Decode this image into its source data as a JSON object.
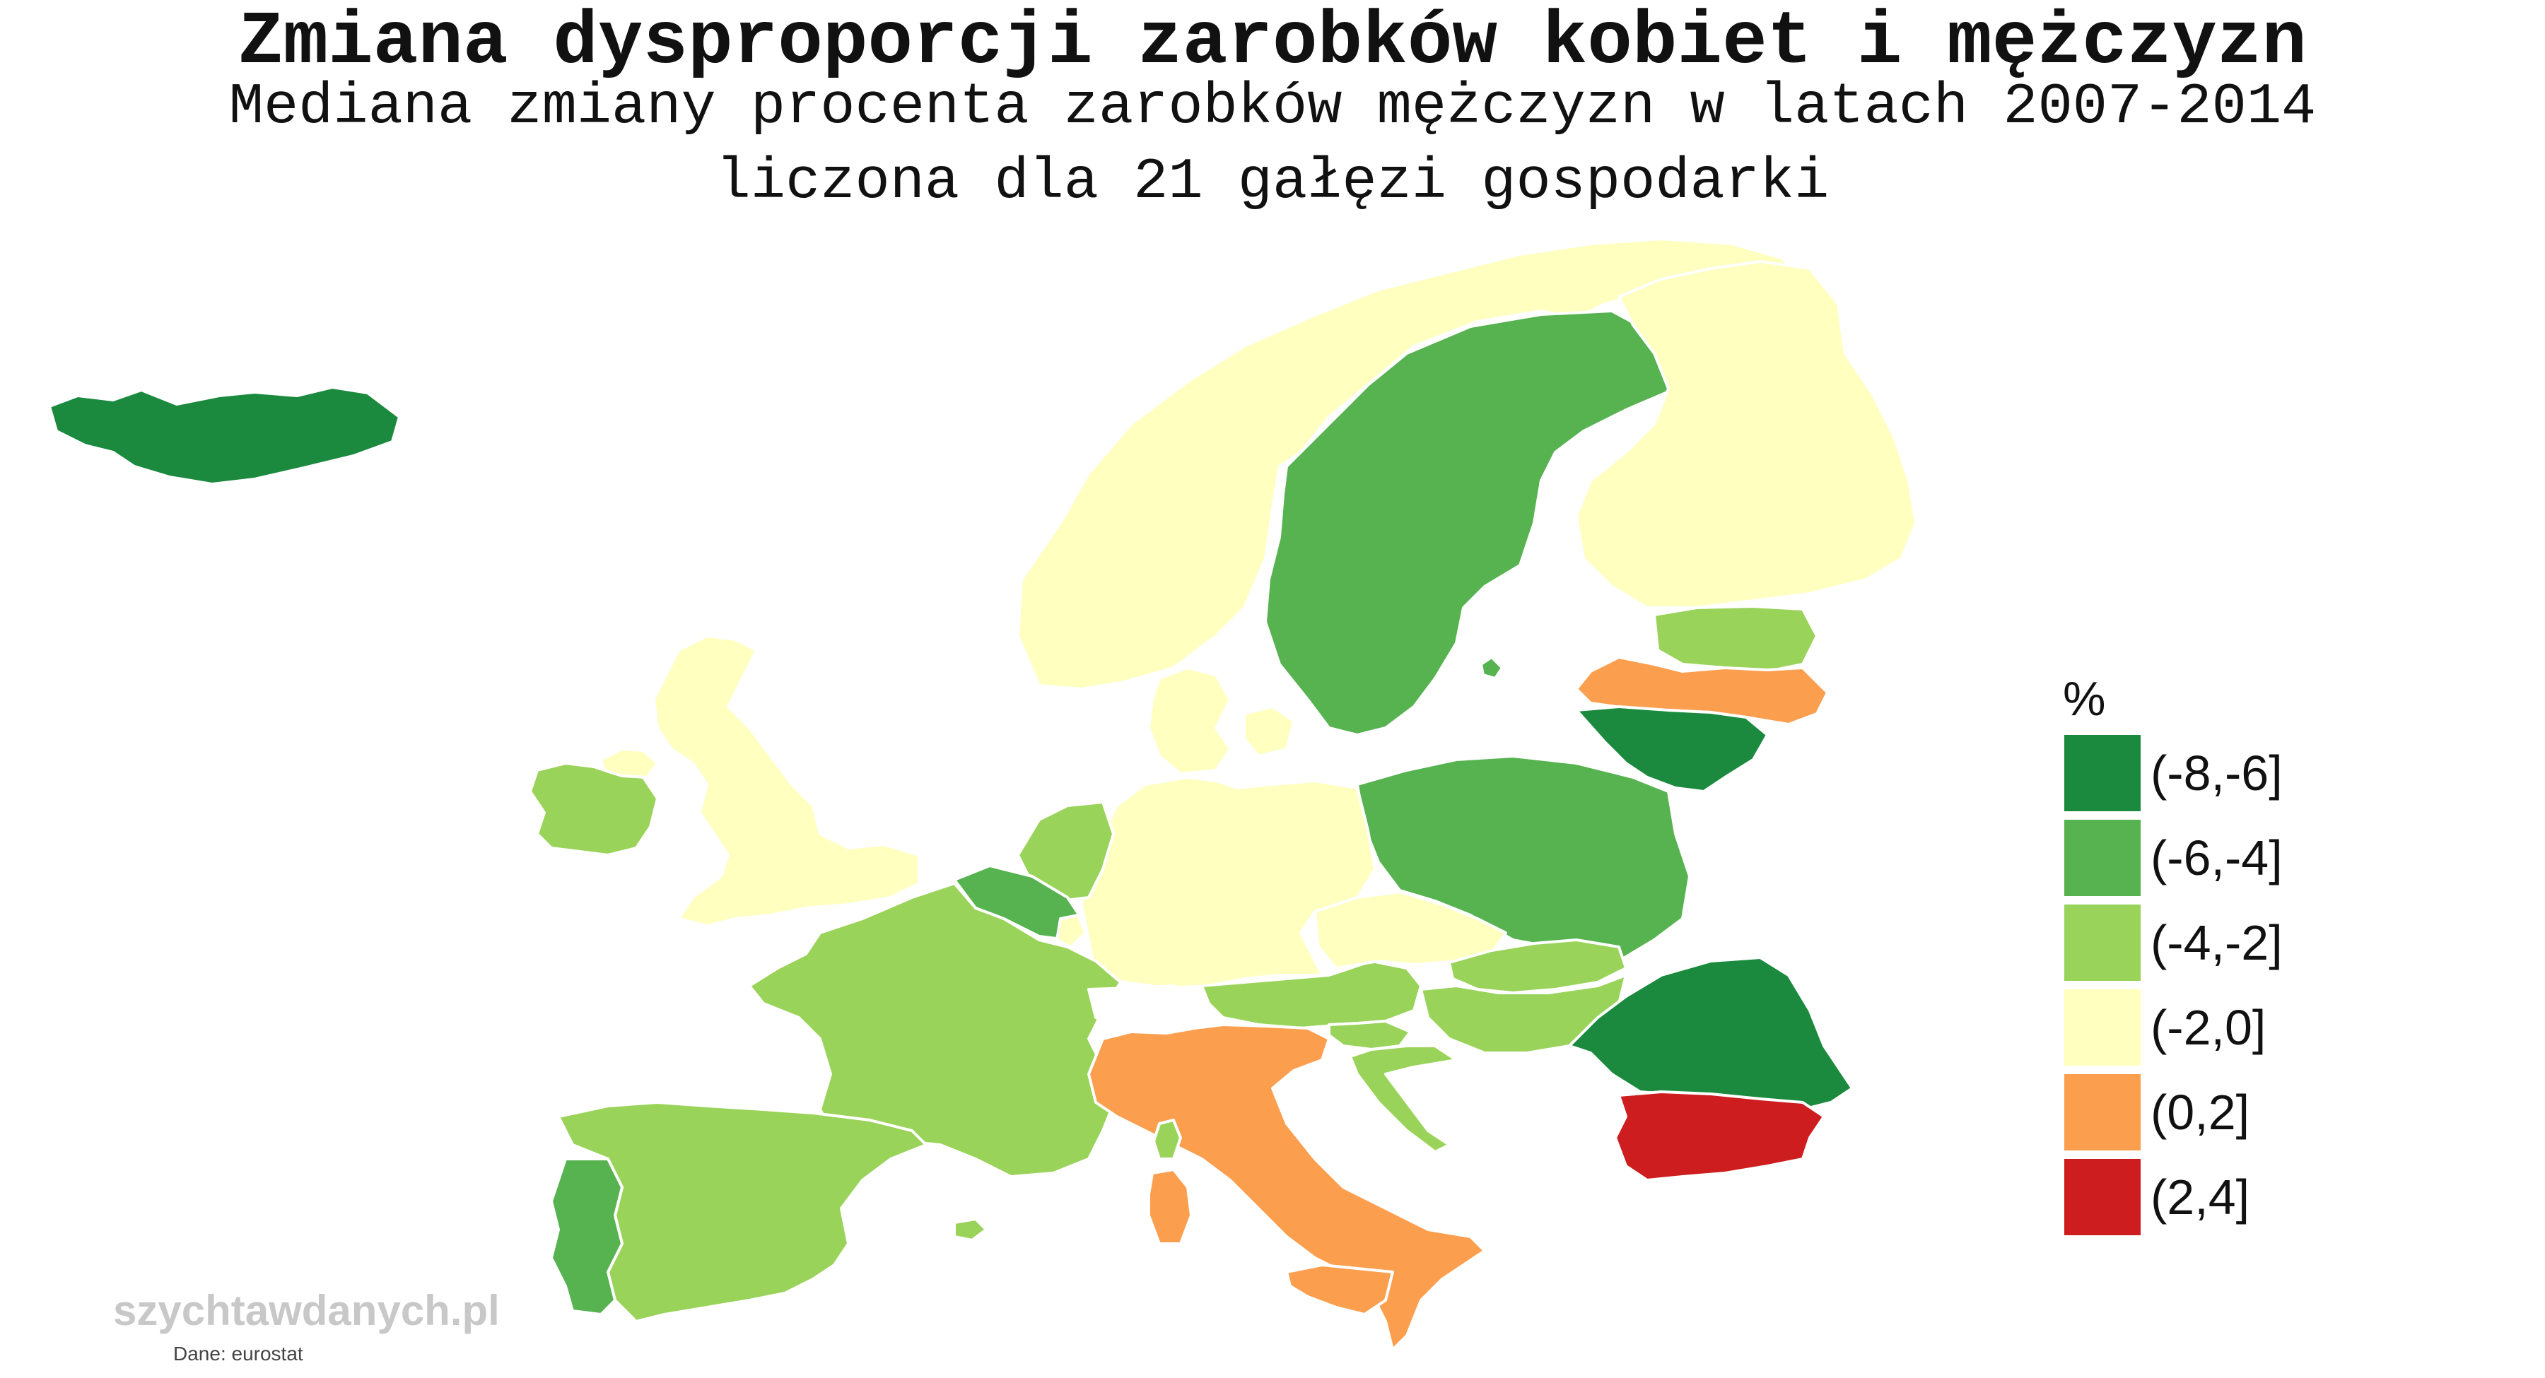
{
  "title": "Zmiana dysproporcji zarobków kobiet i mężczyzn",
  "subtitle_line1": "Mediana zmiany procenta zarobków mężczyzn w latach 2007-2014",
  "subtitle_line2": "liczona dla 21 gałęzi gospodarki",
  "legend": {
    "title": "%",
    "items": [
      {
        "label": "(-8,-6]",
        "color": "#1b8a3e"
      },
      {
        "label": "(-6,-4]",
        "color": "#57b250"
      },
      {
        "label": "(-4,-2]",
        "color": "#9ad35a"
      },
      {
        "label": "(-2,0]",
        "color": "#ffffbf"
      },
      {
        "label": "(0,2]",
        "color": "#fb9f4f"
      },
      {
        "label": "(2,4]",
        "color": "#cd1d1e"
      }
    ]
  },
  "watermark": "szychtawdanych.pl",
  "source": "Dane: eurostat"
}
